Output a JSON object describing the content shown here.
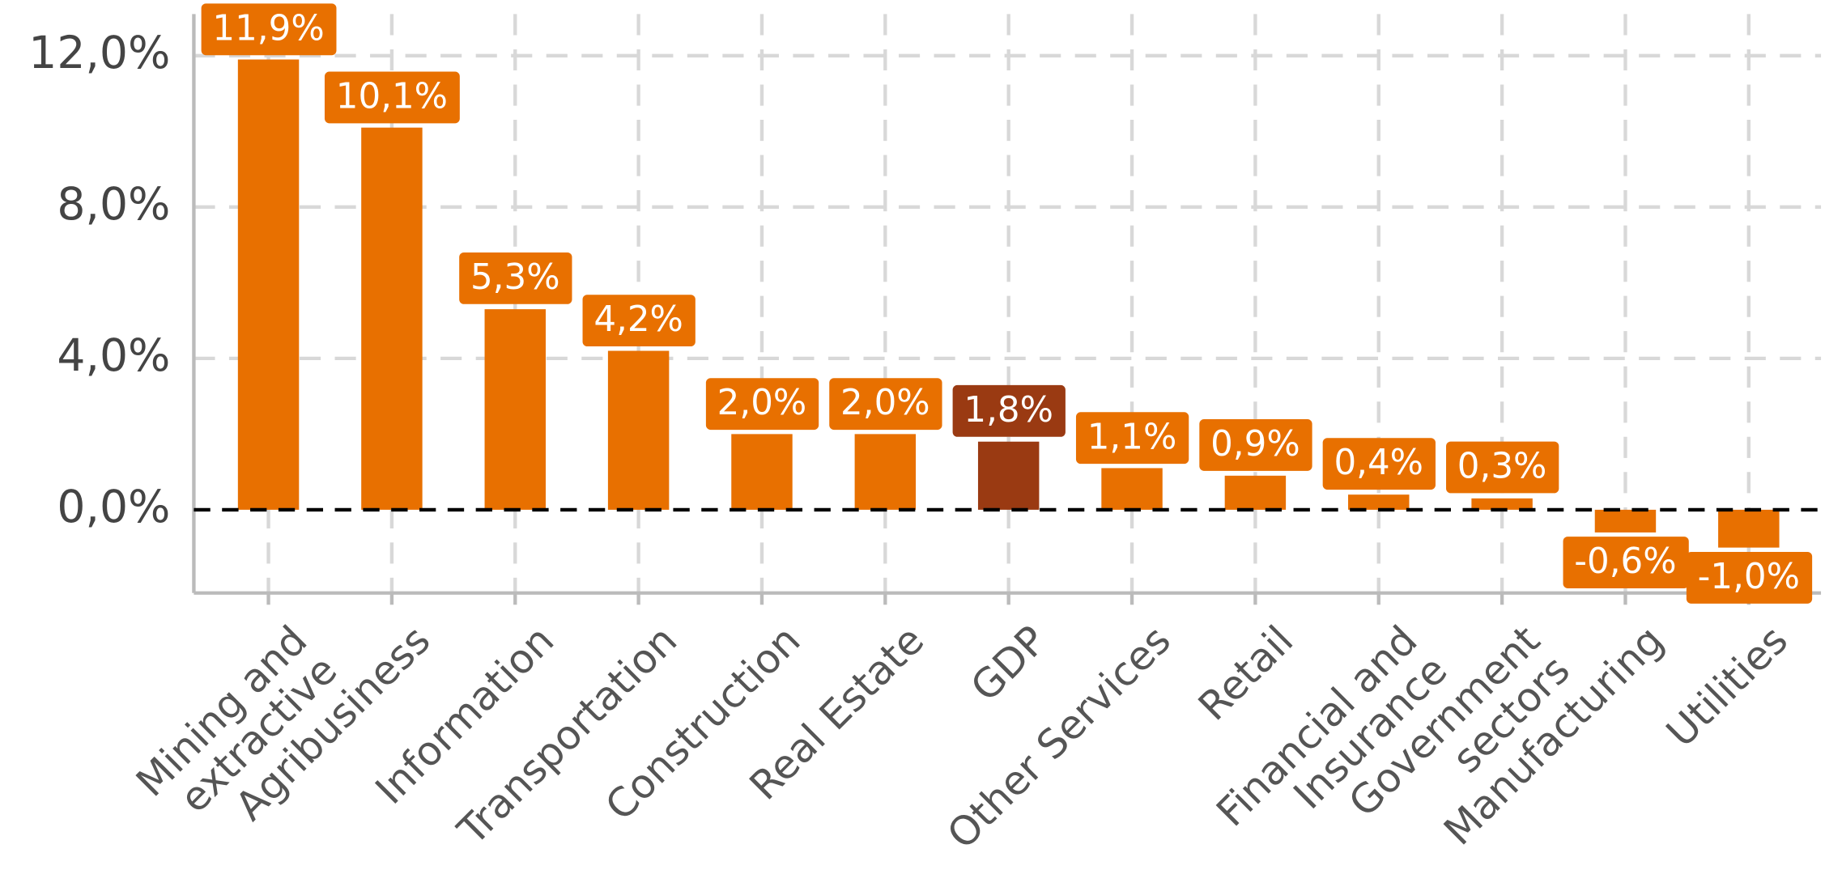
{
  "chart_data": {
    "type": "bar",
    "categories": [
      "Mining and\nextractive",
      "Agribusiness",
      "Information",
      "Transportation",
      "Construction",
      "Real Estate",
      "GDP",
      "Other Services",
      "Retail",
      "Financial and\nInsurance",
      "Government\nsectors",
      "Manufacturing",
      "Utilities"
    ],
    "values": [
      11.9,
      10.1,
      5.3,
      4.2,
      2.0,
      2.0,
      1.8,
      1.1,
      0.9,
      0.4,
      0.3,
      -0.6,
      -1.0
    ],
    "value_labels": [
      "11,9%",
      "10,1%",
      "5,3%",
      "4,2%",
      "2,0%",
      "2,0%",
      "1,8%",
      "1,1%",
      "0,9%",
      "0,4%",
      "0,3%",
      "-0,6%",
      "-1,0%"
    ],
    "colors": [
      "#e87000",
      "#e87000",
      "#e87000",
      "#e87000",
      "#e87000",
      "#e87000",
      "#9a3a12",
      "#e87000",
      "#e87000",
      "#e87000",
      "#e87000",
      "#e87000",
      "#e87000"
    ],
    "ylim": [
      -2.2,
      13.1
    ],
    "yticks": [
      {
        "value": 0,
        "label": "0,0%"
      },
      {
        "value": 4,
        "label": "4,0%"
      },
      {
        "value": 8,
        "label": "8,0%"
      },
      {
        "value": 12,
        "label": "12,0%"
      }
    ],
    "grid": true
  }
}
